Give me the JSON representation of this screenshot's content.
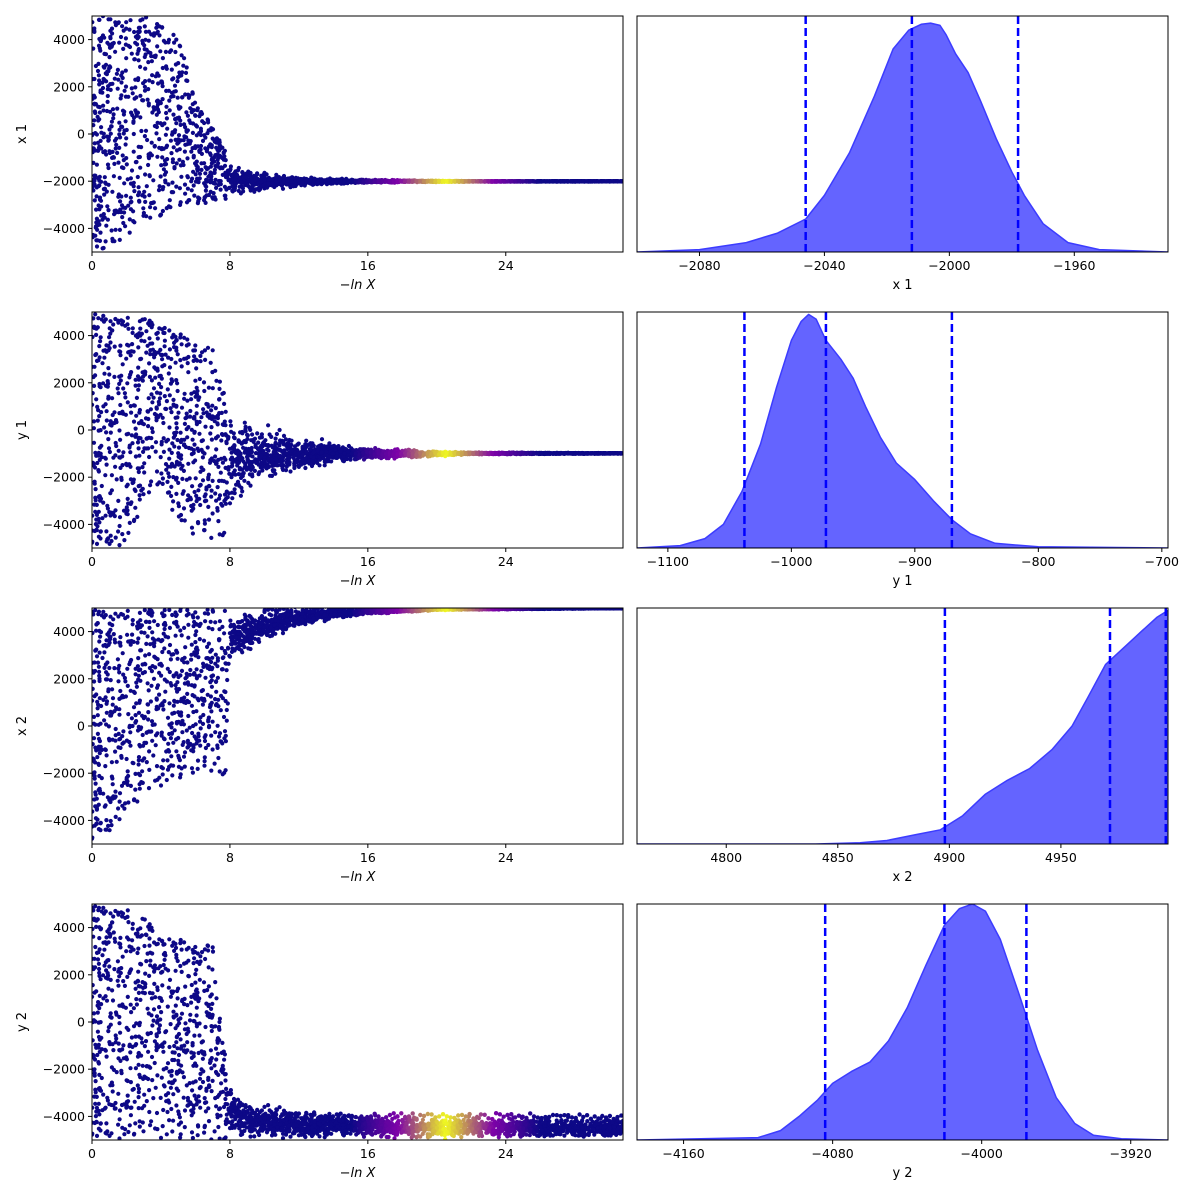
{
  "figure": {
    "colors": {
      "scatter_low": "#0d0887",
      "scatter_mid": "#7e03a8",
      "scatter_high": "#f0f921",
      "kde_fill": "#6464ff",
      "kde_line": "#3c3cff",
      "quantile_line": "#0000ff"
    }
  },
  "chart_data": [
    {
      "type": "scatter",
      "panel": "trace-x1",
      "xlabel": "−ln X",
      "ylabel": "x 1",
      "xlim": [
        0,
        30.8
      ],
      "ylim": [
        -5000,
        5000
      ],
      "xticks": [
        "0",
        "8",
        "16",
        "24"
      ],
      "xtick_values": [
        0,
        8,
        16,
        24
      ],
      "yticks": [
        "−4000",
        "−2000",
        "0",
        "2000",
        "4000"
      ],
      "ytick_values": [
        -4000,
        -2000,
        0,
        2000,
        4000
      ],
      "profile": {
        "knee_x": 7.8,
        "upper_envelope": [
          [
            0,
            5000
          ],
          [
            1,
            5000
          ],
          [
            2,
            5000
          ],
          [
            3,
            5000
          ],
          [
            4,
            4800
          ],
          [
            5,
            4200
          ],
          [
            6,
            1500
          ],
          [
            7,
            300
          ],
          [
            7.8,
            -800
          ],
          [
            9,
            -1400
          ],
          [
            12,
            -1800
          ],
          [
            16,
            -1920
          ],
          [
            22,
            -1990
          ],
          [
            30.8,
            -2010
          ]
        ],
        "lower_envelope": [
          [
            0,
            -5000
          ],
          [
            1,
            -4800
          ],
          [
            2,
            -4300
          ],
          [
            3,
            -3800
          ],
          [
            4,
            -3500
          ],
          [
            5,
            -3100
          ],
          [
            6,
            -3000
          ],
          [
            7,
            -2900
          ],
          [
            7.8,
            -2800
          ],
          [
            9,
            -2600
          ],
          [
            12,
            -2250
          ],
          [
            16,
            -2080
          ],
          [
            22,
            -2025
          ],
          [
            30.8,
            -2010
          ]
        ],
        "center": -2010,
        "peak_weight_x": 20.5
      }
    },
    {
      "type": "area",
      "panel": "posterior-x1",
      "xlabel": "x 1",
      "ylabel": "",
      "xlim": [
        -2100,
        -1930
      ],
      "xticks": [
        "−2080",
        "−2040",
        "−2000",
        "−1960"
      ],
      "xtick_values": [
        -2080,
        -2040,
        -2000,
        -1960
      ],
      "density": [
        [
          -2100,
          0
        ],
        [
          -2080,
          0.01
        ],
        [
          -2065,
          0.04
        ],
        [
          -2055,
          0.08
        ],
        [
          -2046,
          0.14
        ],
        [
          -2040,
          0.24
        ],
        [
          -2032,
          0.42
        ],
        [
          -2024,
          0.66
        ],
        [
          -2018,
          0.86
        ],
        [
          -2013,
          0.94
        ],
        [
          -2009,
          0.965
        ],
        [
          -2006,
          0.97
        ],
        [
          -2003,
          0.96
        ],
        [
          -2001,
          0.92
        ],
        [
          -1998,
          0.84
        ],
        [
          -1994,
          0.76
        ],
        [
          -1990,
          0.64
        ],
        [
          -1985,
          0.48
        ],
        [
          -1980,
          0.34
        ],
        [
          -1976,
          0.24
        ],
        [
          -1970,
          0.12
        ],
        [
          -1962,
          0.04
        ],
        [
          -1952,
          0.01
        ],
        [
          -1930,
          0
        ]
      ],
      "quantiles": [
        -2046,
        -2012,
        -1978
      ]
    },
    {
      "type": "scatter",
      "panel": "trace-y1",
      "xlabel": "−ln X",
      "ylabel": "y 1",
      "xlim": [
        0,
        30.8
      ],
      "ylim": [
        -5000,
        5000
      ],
      "xticks": [
        "0",
        "8",
        "16",
        "24"
      ],
      "xtick_values": [
        0,
        8,
        16,
        24
      ],
      "yticks": [
        "−4000",
        "−2000",
        "0",
        "2000",
        "4000"
      ],
      "ytick_values": [
        -4000,
        -2000,
        0,
        2000,
        4000
      ],
      "profile": {
        "knee_x": 7.8,
        "upper_envelope": [
          [
            0,
            5000
          ],
          [
            1,
            5000
          ],
          [
            2,
            4900
          ],
          [
            3,
            4800
          ],
          [
            4,
            4500
          ],
          [
            5,
            4100
          ],
          [
            6,
            3800
          ],
          [
            7,
            3500
          ],
          [
            7.8,
            1800
          ],
          [
            9,
            700
          ],
          [
            12,
            -200
          ],
          [
            16,
            -700
          ],
          [
            22,
            -930
          ],
          [
            30.8,
            -980
          ]
        ],
        "lower_envelope": [
          [
            0,
            -5000
          ],
          [
            1,
            -5000
          ],
          [
            2,
            -4900
          ],
          [
            3,
            -3000
          ],
          [
            4,
            -2600
          ],
          [
            5,
            -4300
          ],
          [
            6,
            -4500
          ],
          [
            7,
            -4600
          ],
          [
            7.8,
            -4400
          ],
          [
            9,
            -2700
          ],
          [
            12,
            -1800
          ],
          [
            16,
            -1300
          ],
          [
            22,
            -1050
          ],
          [
            30.8,
            -1000
          ]
        ],
        "center": -1000,
        "peak_weight_x": 20.5
      }
    },
    {
      "type": "area",
      "panel": "posterior-y1",
      "xlabel": "y 1",
      "ylabel": "",
      "xlim": [
        -1125,
        -695
      ],
      "xticks": [
        "−1100",
        "−1000",
        "−900",
        "−800",
        "−700"
      ],
      "xtick_values": [
        -1100,
        -1000,
        -900,
        -800,
        -700
      ],
      "density": [
        [
          -1125,
          0
        ],
        [
          -1090,
          0.01
        ],
        [
          -1070,
          0.04
        ],
        [
          -1055,
          0.1
        ],
        [
          -1040,
          0.24
        ],
        [
          -1025,
          0.44
        ],
        [
          -1012,
          0.68
        ],
        [
          -1000,
          0.88
        ],
        [
          -992,
          0.96
        ],
        [
          -986,
          0.99
        ],
        [
          -980,
          0.97
        ],
        [
          -972,
          0.88
        ],
        [
          -960,
          0.8
        ],
        [
          -950,
          0.72
        ],
        [
          -940,
          0.6
        ],
        [
          -928,
          0.47
        ],
        [
          -915,
          0.36
        ],
        [
          -900,
          0.29
        ],
        [
          -885,
          0.2
        ],
        [
          -870,
          0.12
        ],
        [
          -855,
          0.06
        ],
        [
          -835,
          0.02
        ],
        [
          -800,
          0.005
        ],
        [
          -695,
          0
        ]
      ],
      "quantiles": [
        -1038,
        -972,
        -870
      ]
    },
    {
      "type": "scatter",
      "panel": "trace-x2",
      "xlabel": "−ln X",
      "ylabel": "x 2",
      "xlim": [
        0,
        30.8
      ],
      "ylim": [
        -5000,
        5000
      ],
      "xticks": [
        "0",
        "8",
        "16",
        "24"
      ],
      "xtick_values": [
        0,
        8,
        16,
        24
      ],
      "yticks": [
        "−4000",
        "−2000",
        "0",
        "2000",
        "4000"
      ],
      "ytick_values": [
        -4000,
        -2000,
        0,
        2000,
        4000
      ],
      "profile": {
        "knee_x": 7.8,
        "upper_envelope": [
          [
            0,
            5000
          ],
          [
            30.8,
            5000
          ]
        ],
        "lower_envelope": [
          [
            0,
            -5000
          ],
          [
            1,
            -4600
          ],
          [
            2,
            -3600
          ],
          [
            3,
            -3000
          ],
          [
            4,
            -2600
          ],
          [
            5,
            -2300
          ],
          [
            6,
            -2000
          ],
          [
            7,
            -1900
          ],
          [
            7.8,
            -2100
          ],
          [
            8,
            2500
          ],
          [
            10,
            3500
          ],
          [
            12,
            4200
          ],
          [
            16,
            4700
          ],
          [
            20,
            4900
          ],
          [
            30.8,
            4990
          ]
        ],
        "center": 4985,
        "peak_weight_x": 20.5
      }
    },
    {
      "type": "area",
      "panel": "posterior-x2",
      "xlabel": "x 2",
      "ylabel": "",
      "xlim": [
        4760,
        4998
      ],
      "xticks": [
        "4800",
        "4850",
        "4900",
        "4950"
      ],
      "xtick_values": [
        4800,
        4850,
        4900,
        4950
      ],
      "density": [
        [
          4760,
          0
        ],
        [
          4840,
          0
        ],
        [
          4860,
          0.005
        ],
        [
          4872,
          0.015
        ],
        [
          4885,
          0.04
        ],
        [
          4896,
          0.06
        ],
        [
          4906,
          0.12
        ],
        [
          4916,
          0.21
        ],
        [
          4926,
          0.27
        ],
        [
          4936,
          0.32
        ],
        [
          4946,
          0.4
        ],
        [
          4955,
          0.5
        ],
        [
          4962,
          0.62
        ],
        [
          4970,
          0.76
        ],
        [
          4978,
          0.83
        ],
        [
          4986,
          0.9
        ],
        [
          4993,
          0.96
        ],
        [
          4998,
          0.99
        ]
      ],
      "quantiles": [
        4898,
        4972,
        4997
      ]
    },
    {
      "type": "scatter",
      "panel": "trace-y2",
      "xlabel": "−ln X",
      "ylabel": "y 2",
      "xlim": [
        0,
        30.8
      ],
      "ylim": [
        -5000,
        5000
      ],
      "xticks": [
        "0",
        "8",
        "16",
        "24"
      ],
      "xtick_values": [
        0,
        8,
        16,
        24
      ],
      "yticks": [
        "−4000",
        "−2000",
        "0",
        "2000",
        "4000"
      ],
      "ytick_values": [
        -4000,
        -2000,
        0,
        2000,
        4000
      ],
      "profile": {
        "knee_x": 7.8,
        "upper_envelope": [
          [
            0,
            5000
          ],
          [
            1,
            5000
          ],
          [
            2,
            4900
          ],
          [
            3,
            4500
          ],
          [
            4,
            3700
          ],
          [
            5,
            3500
          ],
          [
            6,
            3400
          ],
          [
            7,
            3300
          ],
          [
            7.8,
            -1900
          ],
          [
            9,
            -3300
          ],
          [
            12,
            -3650
          ],
          [
            16,
            -3850
          ],
          [
            22,
            -3950
          ],
          [
            30.8,
            -3990
          ]
        ],
        "lower_envelope": [
          [
            0,
            -5000
          ],
          [
            30.8,
            -5000
          ]
        ],
        "center": -3990,
        "peak_weight_x": 20.5
      }
    },
    {
      "type": "area",
      "panel": "posterior-y2",
      "xlabel": "y 2",
      "ylabel": "",
      "xlim": [
        -4185,
        -3900
      ],
      "xticks": [
        "−4160",
        "−4080",
        "−4000",
        "−3920"
      ],
      "xtick_values": [
        -4160,
        -4080,
        -4000,
        -3920
      ],
      "density": [
        [
          -4185,
          0
        ],
        [
          -4120,
          0.01
        ],
        [
          -4108,
          0.04
        ],
        [
          -4098,
          0.1
        ],
        [
          -4088,
          0.17
        ],
        [
          -4080,
          0.24
        ],
        [
          -4070,
          0.29
        ],
        [
          -4060,
          0.33
        ],
        [
          -4050,
          0.42
        ],
        [
          -4040,
          0.56
        ],
        [
          -4030,
          0.74
        ],
        [
          -4020,
          0.91
        ],
        [
          -4012,
          0.98
        ],
        [
          -4005,
          1.0
        ],
        [
          -3998,
          0.97
        ],
        [
          -3990,
          0.85
        ],
        [
          -3980,
          0.62
        ],
        [
          -3970,
          0.38
        ],
        [
          -3960,
          0.18
        ],
        [
          -3950,
          0.07
        ],
        [
          -3940,
          0.02
        ],
        [
          -3925,
          0.005
        ],
        [
          -3900,
          0
        ]
      ],
      "quantiles": [
        -4084,
        -4020,
        -3976
      ]
    }
  ]
}
